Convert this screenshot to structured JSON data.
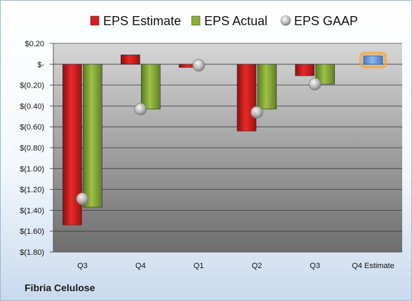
{
  "company": "Fibria Celulose",
  "chart_data": {
    "type": "bar",
    "categories": [
      "Q3",
      "Q4",
      "Q1",
      "Q2",
      "Q3",
      "Q4 Estimate"
    ],
    "series": [
      {
        "name": "EPS Estimate",
        "color": "#d62020",
        "values": [
          -1.54,
          0.09,
          -0.03,
          -0.64,
          -0.11,
          null
        ]
      },
      {
        "name": "EPS Actual",
        "color": "#8cb035",
        "values": [
          -1.37,
          -0.43,
          null,
          -0.43,
          -0.19,
          null
        ]
      },
      {
        "name": "EPS GAAP",
        "color": "#b8b8b8",
        "marker": "circle",
        "values": [
          -1.29,
          -0.43,
          -0.01,
          -0.46,
          -0.19,
          null
        ]
      }
    ],
    "forecast": {
      "category": "Q4 Estimate",
      "value": 0.08,
      "color": "#6fa0dc",
      "glow": "#f5a540"
    },
    "ylim": [
      -1.8,
      0.2
    ],
    "yticks": [
      0.2,
      0,
      -0.2,
      -0.4,
      -0.6,
      -0.8,
      -1.0,
      -1.2,
      -1.4,
      -1.6,
      -1.8
    ],
    "ytick_labels": [
      "$0.20",
      "$-",
      "$(0.20)",
      "$(0.40)",
      "$(0.60)",
      "$(0.80)",
      "$(1.00)",
      "$(1.20)",
      "$(1.40)",
      "$(1.60)",
      "$(1.80)"
    ],
    "grid": true,
    "legend": "top"
  }
}
